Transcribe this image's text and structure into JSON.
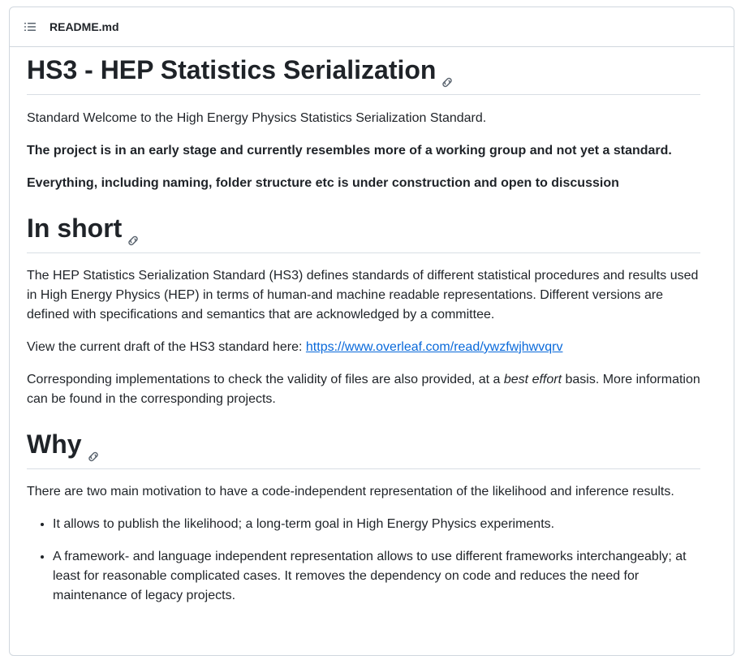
{
  "header": {
    "file_name": "README.md",
    "toc_icon": "list-unordered-icon"
  },
  "title": "HS3 - HEP Statistics Serialization",
  "intro": {
    "p1": "Standard Welcome to the High Energy Physics Statistics Serialization Standard.",
    "p2": "The project is in an early stage and currently resembles more of a working group and not yet a standard.",
    "p3": "Everything, including naming, folder structure etc is under construction and open to discussion"
  },
  "in_short": {
    "heading": "In short",
    "p1": "The HEP Statistics Serialization Standard (HS3) defines standards of different statistical procedures and results used in High Energy Physics (HEP) in terms of human-and machine readable representations. Different versions are defined with specifications and semantics that are acknowledged by a committee.",
    "p2_prefix": "View the current draft of the HS3 standard here: ",
    "p2_link": "https://www.overleaf.com/read/ywzfwjhwvqrv",
    "p3_prefix": "Corresponding implementations to check the validity of files are also provided, at a ",
    "p3_em": "best effort",
    "p3_suffix": " basis. More information can be found in the corresponding projects."
  },
  "why": {
    "heading": "Why",
    "p1": "There are two main motivation to have a code-independent representation of the likelihood and inference results.",
    "items": [
      "It allows to publish the likelihood; a long-term goal in High Energy Physics experiments.",
      "A framework- and language independent representation allows to use different frameworks interchangeably; at least for reasonable complicated cases. It removes the dependency on code and reduces the need for maintenance of legacy projects."
    ]
  },
  "colors": {
    "text": "#1f2328",
    "link": "#0969da",
    "border": "#d0d7de",
    "icon": "#59636e"
  }
}
